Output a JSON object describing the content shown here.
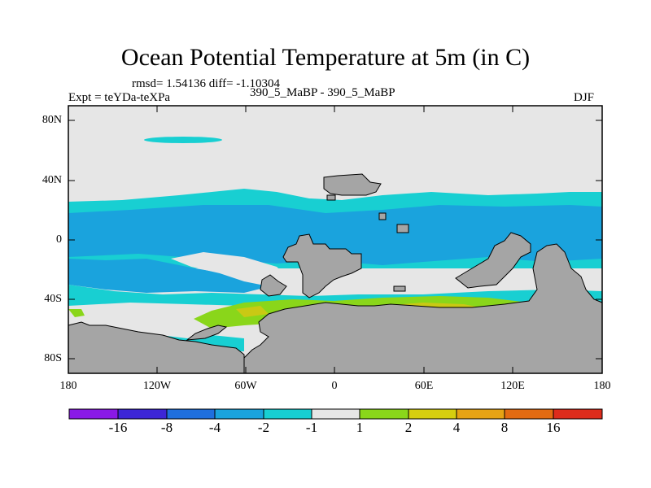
{
  "title": "Ocean Potential Temperature at 5m (in C)",
  "stats": "rmsd= 1.54136 diff= -1.10304",
  "expt": "Expt = teYDa-teXPa",
  "comparison": "390_5_MaBP - 390_5_MaBP",
  "season": "DJF",
  "y_ticks": [
    "80N",
    "40N",
    "0",
    "40S",
    "80S"
  ],
  "x_ticks": [
    "180",
    "120W",
    "60W",
    "0",
    "60E",
    "120E",
    "180"
  ],
  "colorbar": {
    "labels": [
      "-16",
      "-8",
      "-4",
      "-2",
      "-1",
      "1",
      "2",
      "4",
      "8",
      "16"
    ],
    "colors": [
      "#8a19e6",
      "#3d26d6",
      "#1f6fde",
      "#1aa3dd",
      "#18cfd2",
      "#e6e6e6",
      "#8ad61a",
      "#d6cf0f",
      "#e6a314",
      "#e36b12",
      "#dd2c1c"
    ]
  },
  "colors": {
    "land": "#a5a5a5",
    "neutral": "#e6e6e6",
    "cyan": "#18cfd2",
    "blue": "#1aa3dd",
    "green": "#8ad61a",
    "yellow": "#c9c914"
  }
}
